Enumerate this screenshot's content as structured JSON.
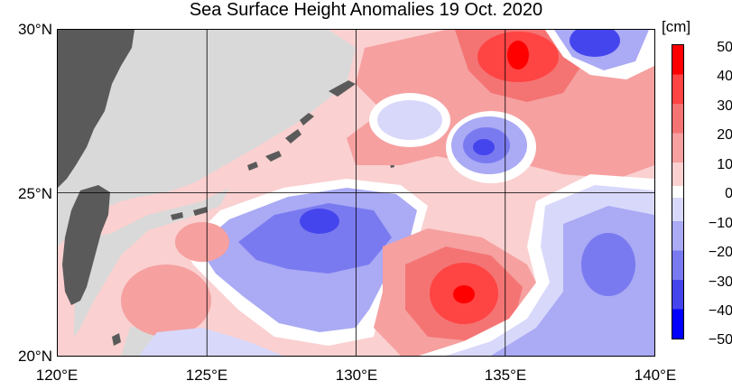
{
  "title": "Sea Surface Height Anomalies  19 Oct. 2020",
  "map": {
    "lon_range": [
      120,
      140
    ],
    "lat_range": [
      20,
      30
    ],
    "gridlines": true,
    "x_ticks": [
      {
        "value": 120,
        "label": "120°E"
      },
      {
        "value": 125,
        "label": "125°E"
      },
      {
        "value": 130,
        "label": "130°E"
      },
      {
        "value": 135,
        "label": "135°E"
      },
      {
        "value": 140,
        "label": "140°E"
      }
    ],
    "y_ticks": [
      {
        "value": 30,
        "label": "30°N"
      },
      {
        "value": 25,
        "label": "25°N"
      },
      {
        "value": 20,
        "label": "20°N"
      }
    ],
    "colors": {
      "land": "#5a5a5a",
      "no_data": "#d9d9d9",
      "zero": "#ffffff"
    }
  },
  "colorbar": {
    "unit": "[cm]",
    "labels": [
      "50",
      "40",
      "30",
      "20",
      "10",
      "0",
      "−10",
      "−20",
      "−30",
      "−40",
      "−50"
    ],
    "bands": [
      {
        "from": 40,
        "to": 50,
        "color": "#ff0000"
      },
      {
        "from": 30,
        "to": 40,
        "color": "#ff4444"
      },
      {
        "from": 20,
        "to": 30,
        "color": "#f47474"
      },
      {
        "from": 10,
        "to": 20,
        "color": "#f6a0a0"
      },
      {
        "from": 2,
        "to": 10,
        "color": "#fad0d0"
      },
      {
        "from": -2,
        "to": 2,
        "color": "#ffffff"
      },
      {
        "from": -10,
        "to": -2,
        "color": "#d8d8fb"
      },
      {
        "from": -20,
        "to": -10,
        "color": "#aaaaf5"
      },
      {
        "from": -30,
        "to": -20,
        "color": "#7a7af0"
      },
      {
        "from": -40,
        "to": -30,
        "color": "#4545ee"
      },
      {
        "from": -50,
        "to": -40,
        "color": "#0000ff"
      }
    ]
  }
}
